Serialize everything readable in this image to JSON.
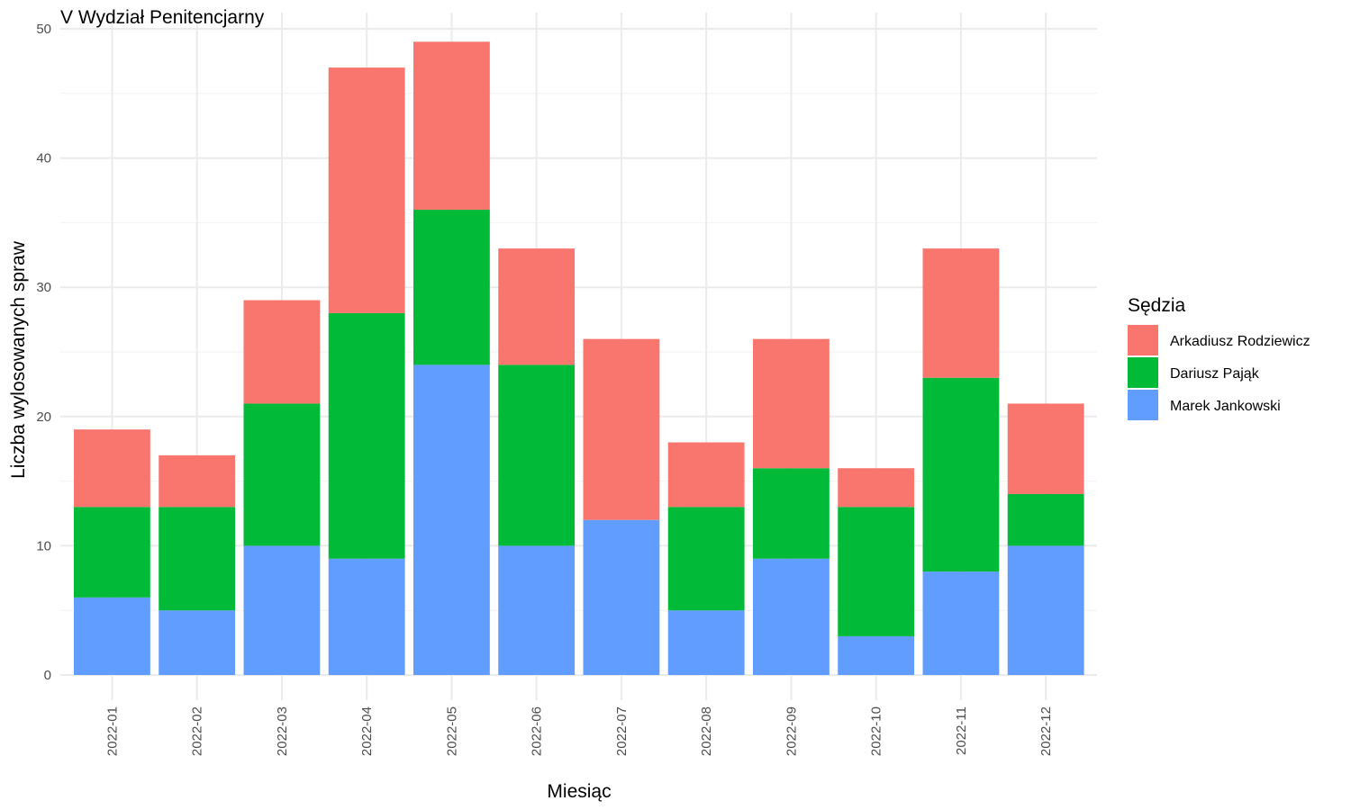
{
  "chart_data": {
    "type": "bar",
    "stacked": true,
    "title": "V Wydział Penitencjarny",
    "xlabel": "Miesiąc",
    "ylabel": "Liczba wylosowanych spraw",
    "ylim": [
      0,
      50
    ],
    "yticks": [
      0,
      10,
      20,
      30,
      40,
      50
    ],
    "grid": true,
    "legend": {
      "title": "Sędzia",
      "position": "right"
    },
    "categories": [
      "2022-01",
      "2022-02",
      "2022-03",
      "2022-04",
      "2022-05",
      "2022-06",
      "2022-07",
      "2022-08",
      "2022-09",
      "2022-10",
      "2022-11",
      "2022-12"
    ],
    "series": [
      {
        "name": "Marek Jankowski",
        "color": "#619CFF",
        "values": [
          6,
          5,
          10,
          9,
          24,
          10,
          12,
          5,
          9,
          3,
          8,
          10
        ]
      },
      {
        "name": "Dariusz Pająk",
        "color": "#00BA38",
        "values": [
          7,
          8,
          11,
          19,
          12,
          14,
          0,
          8,
          7,
          10,
          15,
          4
        ]
      },
      {
        "name": "Arkadiusz Rodziewicz",
        "color": "#F8766D",
        "values": [
          6,
          4,
          8,
          19,
          13,
          9,
          14,
          5,
          10,
          3,
          10,
          7
        ]
      }
    ],
    "legend_order": [
      "Arkadiusz Rodziewicz",
      "Dariusz Pająk",
      "Marek Jankowski"
    ]
  }
}
